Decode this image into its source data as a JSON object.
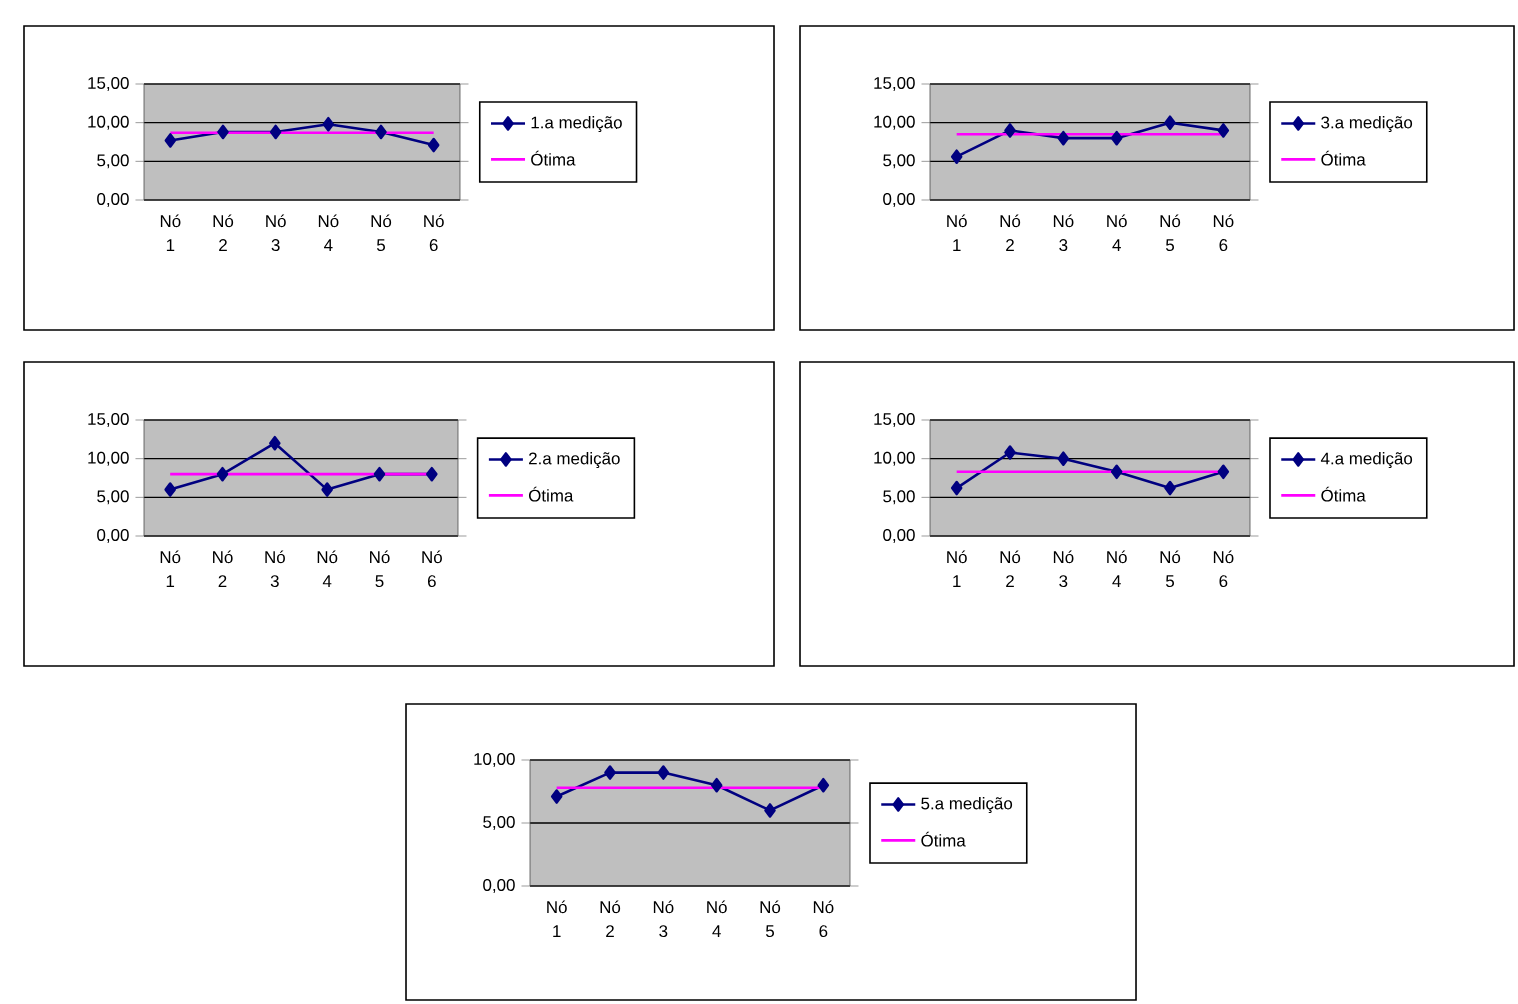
{
  "chart_data": [
    {
      "type": "line",
      "categories": [
        "Nó 1",
        "Nó 2",
        "Nó 3",
        "Nó 4",
        "Nó 5",
        "Nó 6"
      ],
      "series": [
        {
          "name": "1.a medição",
          "color": "#000080",
          "marker": "diamond",
          "values": [
            7.7,
            8.8,
            8.8,
            9.8,
            8.8,
            7.1
          ]
        },
        {
          "name": "Ótima",
          "color": "#ff00ff",
          "marker": "none",
          "values": [
            8.7,
            8.7,
            8.7,
            8.7,
            8.7,
            8.7
          ]
        }
      ],
      "ylim": [
        0,
        15
      ],
      "yticks": [
        {
          "value": 0,
          "label": "0,00"
        },
        {
          "value": 5,
          "label": "5,00"
        },
        {
          "value": 10,
          "label": "10,00"
        },
        {
          "value": 15,
          "label": "15,00"
        }
      ],
      "grid": "y",
      "legend": "right"
    },
    {
      "type": "line",
      "categories": [
        "Nó 1",
        "Nó 2",
        "Nó 3",
        "Nó 4",
        "Nó 5",
        "Nó 6"
      ],
      "series": [
        {
          "name": "3.a medição",
          "color": "#000080",
          "marker": "diamond",
          "values": [
            5.6,
            9.0,
            8.0,
            8.0,
            10.0,
            9.0
          ]
        },
        {
          "name": "Ótima",
          "color": "#ff00ff",
          "marker": "none",
          "values": [
            8.5,
            8.5,
            8.5,
            8.5,
            8.5,
            8.5
          ]
        }
      ],
      "ylim": [
        0,
        15
      ],
      "yticks": [
        {
          "value": 0,
          "label": "0,00"
        },
        {
          "value": 5,
          "label": "5,00"
        },
        {
          "value": 10,
          "label": "10,00"
        },
        {
          "value": 15,
          "label": "15,00"
        }
      ],
      "grid": "y",
      "legend": "right"
    },
    {
      "type": "line",
      "categories": [
        "Nó 1",
        "Nó 2",
        "Nó 3",
        "Nó 4",
        "Nó 5",
        "Nó 6"
      ],
      "series": [
        {
          "name": "2.a medição",
          "color": "#000080",
          "marker": "diamond",
          "values": [
            6.0,
            8.0,
            12.0,
            6.0,
            8.0,
            8.0
          ]
        },
        {
          "name": "Ótima",
          "color": "#ff00ff",
          "marker": "none",
          "values": [
            8.0,
            8.0,
            8.0,
            8.0,
            8.0,
            8.0
          ]
        }
      ],
      "ylim": [
        0,
        15
      ],
      "yticks": [
        {
          "value": 0,
          "label": "0,00"
        },
        {
          "value": 5,
          "label": "5,00"
        },
        {
          "value": 10,
          "label": "10,00"
        },
        {
          "value": 15,
          "label": "15,00"
        }
      ],
      "grid": "y",
      "legend": "right"
    },
    {
      "type": "line",
      "categories": [
        "Nó 1",
        "Nó 2",
        "Nó 3",
        "Nó 4",
        "Nó 5",
        "Nó 6"
      ],
      "series": [
        {
          "name": "4.a medição",
          "color": "#000080",
          "marker": "diamond",
          "values": [
            6.2,
            10.8,
            10.0,
            8.3,
            6.2,
            8.3
          ]
        },
        {
          "name": "Ótima",
          "color": "#ff00ff",
          "marker": "none",
          "values": [
            8.3,
            8.3,
            8.3,
            8.3,
            8.3,
            8.3
          ]
        }
      ],
      "ylim": [
        0,
        15
      ],
      "yticks": [
        {
          "value": 0,
          "label": "0,00"
        },
        {
          "value": 5,
          "label": "5,00"
        },
        {
          "value": 10,
          "label": "10,00"
        },
        {
          "value": 15,
          "label": "15,00"
        }
      ],
      "grid": "y",
      "legend": "right"
    },
    {
      "type": "line",
      "categories": [
        "Nó 1",
        "Nó 2",
        "Nó 3",
        "Nó 4",
        "Nó 5",
        "Nó 6"
      ],
      "series": [
        {
          "name": "5.a medição",
          "color": "#000080",
          "marker": "diamond",
          "values": [
            7.1,
            9.0,
            9.0,
            8.0,
            6.0,
            8.0
          ]
        },
        {
          "name": "Ótima",
          "color": "#ff00ff",
          "marker": "none",
          "values": [
            7.8,
            7.8,
            7.8,
            7.8,
            7.8,
            7.8
          ]
        }
      ],
      "ylim": [
        0,
        10
      ],
      "yticks": [
        {
          "value": 0,
          "label": "0,00"
        },
        {
          "value": 5,
          "label": "5,00"
        },
        {
          "value": 10,
          "label": "10,00"
        }
      ],
      "grid": "y",
      "legend": "right"
    }
  ]
}
